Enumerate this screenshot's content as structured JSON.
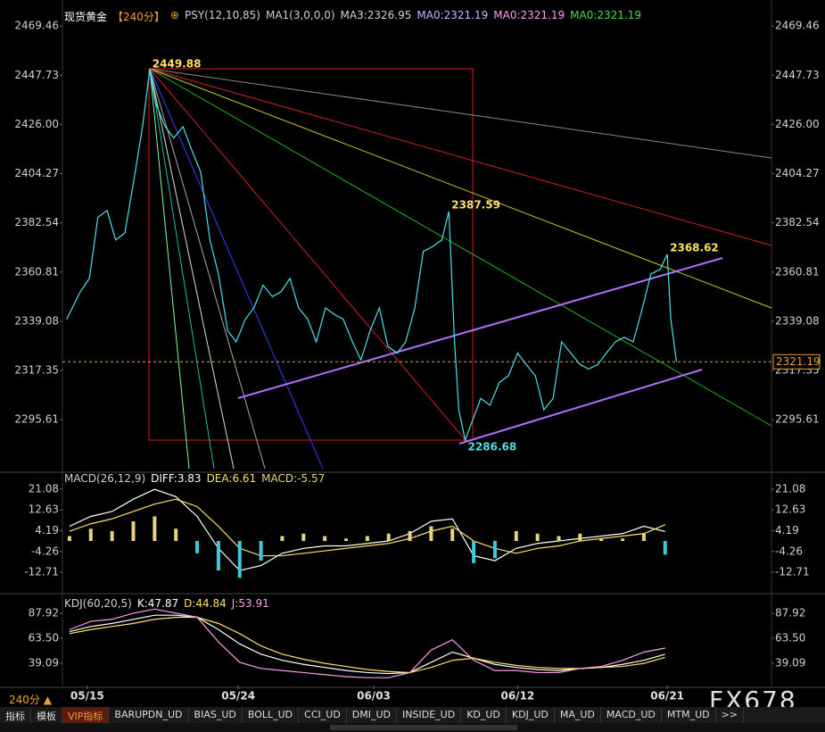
{
  "chart_data": [
    {
      "type": "line",
      "title": "现货黄金",
      "period": "【240分】",
      "color": "#4fe0e8",
      "indicators": [
        {
          "text": "PSY(12,10,85)",
          "color": "#d0d0d0"
        },
        {
          "text": "MA1(3,0,0,0)",
          "color": "#d0d0d0"
        },
        {
          "text": "MA3:2326.95",
          "color": "#d0d0d0"
        },
        {
          "text": "MA0:2321.19",
          "color": "#c8b8ff"
        },
        {
          "text": "MA0:2321.19",
          "color": "#ff9ef0"
        },
        {
          "text": "MA0:2321.19",
          "color": "#40e040"
        }
      ],
      "x": [
        0.6,
        2.5,
        3.8,
        5,
        6.3,
        7.5,
        8.8,
        10,
        11.3,
        12.3,
        13.2,
        14.5,
        15.7,
        17,
        18.2,
        19.5,
        20.8,
        22,
        23.3,
        24.5,
        25.8,
        27,
        28.3,
        29.6,
        30.8,
        32.1,
        33.3,
        34.6,
        35.8,
        37.1,
        38.4,
        39.6,
        40.9,
        42.1,
        43.4,
        44.7,
        45.9,
        47.2,
        48.4,
        49.7,
        50.9,
        52.2,
        53.5,
        54.5,
        55.3,
        55.9,
        56.8,
        57.8,
        59,
        60.3,
        61.6,
        62.9,
        64.2,
        65.4,
        66.7,
        67.9,
        69.2,
        70.4,
        71.7,
        73,
        74.2,
        75.5,
        76.7,
        78,
        79.2,
        80.5,
        81.8,
        83,
        84.3,
        85.3,
        85.8,
        86.6
      ],
      "values": [
        2340,
        2352,
        2358,
        2385,
        2388,
        2375,
        2378,
        2400,
        2425,
        2449.88,
        2435,
        2425,
        2420,
        2425,
        2415,
        2405,
        2375,
        2360,
        2335,
        2330,
        2340,
        2345,
        2355,
        2350,
        2352,
        2358,
        2345,
        2340,
        2330,
        2345,
        2342,
        2340,
        2330,
        2322,
        2335,
        2345,
        2328,
        2325,
        2330,
        2345,
        2370,
        2372,
        2375,
        2387.59,
        2330,
        2300,
        2286.68,
        2295,
        2305,
        2302,
        2312,
        2315,
        2325,
        2320,
        2315,
        2300,
        2305,
        2330,
        2325,
        2320,
        2318,
        2320,
        2325,
        2330,
        2332,
        2330,
        2345,
        2360,
        2362,
        2368.62,
        2340,
        2321.19
      ],
      "xlim": [
        0,
        100
      ],
      "xticks": [
        {
          "value": 3.5,
          "label": "05/15"
        },
        {
          "value": 24.8,
          "label": "05/24"
        },
        {
          "value": 43.9,
          "label": "06/03"
        },
        {
          "value": 64.2,
          "label": "06/12"
        },
        {
          "value": 85.3,
          "label": "06/21"
        }
      ],
      "ylim": [
        2274,
        2477
      ],
      "yticks": [
        2469.46,
        2447.73,
        {
          "value": 2426,
          "label": "2426.00"
        },
        2404.27,
        2382.54,
        2360.81,
        2339.08,
        2317.35,
        2295.61
      ],
      "last_price": 2321.19,
      "annotations": [
        {
          "x": 12.3,
          "value": 2449.88,
          "color": "#ffe066"
        },
        {
          "x": 54.5,
          "value": 2387.59,
          "color": "#ffe066"
        },
        {
          "x": 85.3,
          "value": 2368.62,
          "color": "#ffe066"
        },
        {
          "x": 56.8,
          "value": 2286.68,
          "color": "#4fe0e8"
        }
      ]
    },
    {
      "type": "macd",
      "title": "MACD(26,12,9)",
      "x": [
        1,
        4,
        7,
        10,
        13,
        16,
        19,
        22,
        25,
        28,
        31,
        34,
        37,
        40,
        43,
        46,
        49,
        52,
        55,
        58,
        61,
        64,
        67,
        70,
        73,
        76,
        79,
        82,
        85
      ],
      "series": [
        {
          "name": "DIFF",
          "color": "#ffffff",
          "values": [
            6,
            10,
            12,
            17,
            21,
            18,
            10,
            -3,
            -12,
            -10,
            -5,
            -3,
            -2,
            -2,
            -1,
            0,
            3,
            8,
            9,
            -6,
            -8,
            -3,
            -1,
            0,
            1,
            2,
            3,
            6,
            3.83
          ]
        },
        {
          "name": "DEA",
          "color": "#ffe066",
          "values": [
            4,
            7,
            9,
            12,
            15,
            17,
            14,
            6,
            -3,
            -6,
            -6,
            -5,
            -4,
            -3,
            -2,
            -1,
            1,
            4,
            6,
            0,
            -3,
            -5,
            -3,
            -2,
            0,
            1,
            2,
            3,
            6.61
          ]
        },
        {
          "name": "MACD",
          "type": "bar",
          "color": "#e8d27a",
          "color_negative": "#3ec8d8",
          "values": [
            2,
            5,
            4,
            8,
            10,
            5,
            -5,
            -12,
            -15,
            -8,
            2,
            3,
            2,
            1,
            2,
            3,
            4,
            6,
            5,
            -9,
            -7,
            4,
            3,
            2,
            3,
            1,
            1,
            3,
            -5.57
          ]
        }
      ],
      "ylim": [
        -19.6,
        24.7
      ],
      "yticks": [
        21.08,
        12.63,
        4.19,
        -4.26,
        -12.71
      ]
    },
    {
      "type": "kdj",
      "title": "KDJ(60,20,5)",
      "x": [
        1,
        4,
        7,
        10,
        13,
        16,
        19,
        22,
        25,
        28,
        31,
        34,
        37,
        40,
        43,
        46,
        49,
        52,
        55,
        58,
        61,
        64,
        67,
        70,
        73,
        76,
        79,
        82,
        85
      ],
      "series": [
        {
          "name": "K",
          "color": "#ffffff",
          "values": [
            70,
            75,
            78,
            82,
            86,
            86,
            84,
            72,
            58,
            48,
            42,
            38,
            35,
            32,
            30,
            29,
            30,
            40,
            50,
            44,
            38,
            35,
            33,
            32,
            34,
            35,
            38,
            42,
            47.87
          ]
        },
        {
          "name": "D",
          "color": "#ffe066",
          "values": [
            68,
            72,
            75,
            78,
            82,
            84,
            84,
            78,
            68,
            56,
            48,
            43,
            39,
            36,
            33,
            31,
            30,
            35,
            42,
            44,
            40,
            37,
            35,
            34,
            34,
            35,
            36,
            39,
            44.84
          ]
        },
        {
          "name": "J",
          "color": "#ff9ef0",
          "values": [
            72,
            80,
            82,
            88,
            92,
            88,
            84,
            60,
            40,
            34,
            32,
            30,
            28,
            26,
            25,
            25,
            30,
            52,
            62,
            42,
            32,
            32,
            30,
            30,
            34,
            36,
            42,
            50,
            53.91
          ]
        }
      ],
      "ylim": [
        17.3,
        97.5
      ],
      "yticks": [
        87.92,
        {
          "value": 63.5,
          "label": "63.50"
        },
        39.09
      ]
    }
  ],
  "footer": {
    "period": "240分 ▲",
    "watermark": "FX678",
    "tabs": [
      "指标",
      "模板",
      "VIP指标",
      "BARUPDN_UD",
      "BIAS_UD",
      "BOLL_UD",
      "CCI_UD",
      "DMI_UD",
      "INSIDE_UD",
      "KD_UD",
      "KDJ_UD",
      "MA_UD",
      "MACD_UD",
      "MTM_UD",
      ">>"
    ]
  }
}
